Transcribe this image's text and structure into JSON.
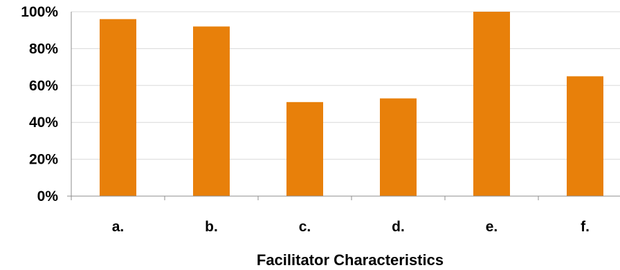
{
  "chart_data": {
    "type": "bar",
    "title": "",
    "xlabel": "Facilitator Characteristics",
    "ylabel": "",
    "categories": [
      "a.",
      "b.",
      "c.",
      "d.",
      "e.",
      "f."
    ],
    "values": [
      96,
      92,
      51,
      53,
      100,
      65
    ],
    "ylim": [
      0,
      100
    ],
    "yticks": [
      0,
      20,
      40,
      60,
      80,
      100
    ],
    "ytick_labels": [
      "0%",
      "20%",
      "40%",
      "60%",
      "80%",
      "100%"
    ],
    "grid": true,
    "legend": "none",
    "bar_color": "#E8800A",
    "grid_color": "#D9D9D9",
    "axis_color": "#8C8C8C"
  }
}
